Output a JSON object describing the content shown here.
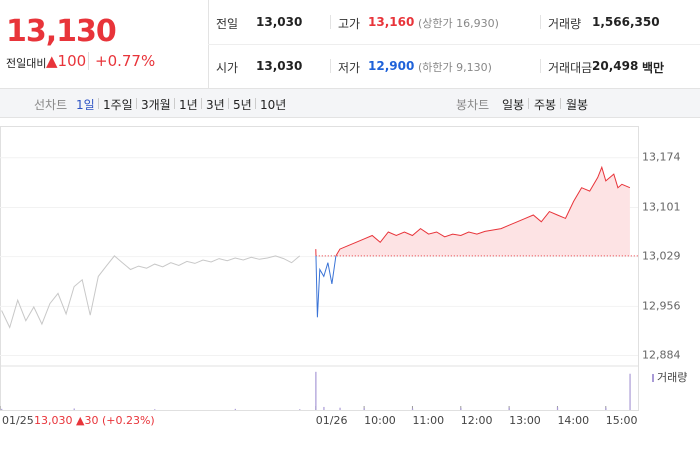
{
  "header": {
    "price": "13,130",
    "change_label": "전일대비",
    "change": "▲100",
    "change_pct": "+0.77%",
    "stats": [
      {
        "label": "전일",
        "value": {
          "value": 13030,
          "label": "13,030"
        }
      },
      {
        "label": "고가",
        "value": "13,160",
        "note": "(상한가 16,930)"
      },
      {
        "label": "거래량",
        "value": "1,566,350"
      },
      {
        "label": "시가",
        "value": "13,030"
      },
      {
        "label": "저가",
        "value": "12,900",
        "note": "(하한가 9,130)"
      },
      {
        "label": "거래대금",
        "value": "20,498",
        "unit": "백만"
      }
    ]
  },
  "nav": {
    "line_label": "선차트",
    "line_periods": [
      "1일",
      "1주일",
      "3개월",
      "1년",
      "3년",
      "5년",
      "10년"
    ],
    "selected": "1일",
    "candle_label": "봉차트",
    "candle_periods": [
      "일봉",
      "주봉",
      "월봉"
    ]
  },
  "chart_data": {
    "type": "line",
    "caption": "13,030 ▲30 (+0.23%)",
    "xlim": [
      -392,
      400
    ],
    "xticks": [
      {
        "value": -392,
        "label": "01/25"
      },
      {
        "value": 0,
        "label": "01/26"
      },
      {
        "value": 60,
        "label": "10:00"
      },
      {
        "value": 120,
        "label": "11:00"
      },
      {
        "value": 180,
        "label": "12:00"
      },
      {
        "value": 240,
        "label": "13:00"
      },
      {
        "value": 300,
        "label": "14:00"
      },
      {
        "value": 360,
        "label": "15:00"
      }
    ],
    "ylim": [
      12870,
      13200
    ],
    "yticks": [
      {
        "value": 12884,
        "label": "12,884"
      },
      {
        "value": 12956,
        "label": "12,956"
      },
      {
        "value": 13029,
        "label": "13,029"
      },
      {
        "value": 13101,
        "label": "13,101"
      },
      {
        "value": 13174,
        "label": "13,174"
      }
    ],
    "grid": true,
    "series": [
      {
        "color": "#c8c8c8",
        "x": [
          -390,
          -380,
          -370,
          -360,
          -350,
          -340,
          -330,
          -320,
          -310,
          -300,
          -290,
          -280,
          -270,
          -260,
          -250,
          -240,
          -230,
          -220,
          -210,
          -200,
          -190,
          -180,
          -170,
          -160,
          -150,
          -140,
          -130,
          -120,
          -110,
          -100,
          -90,
          -80,
          -70,
          -60,
          -50,
          -40,
          -30,
          -20
        ],
        "values": [
          12950,
          12925,
          12965,
          12935,
          12955,
          12930,
          12960,
          12975,
          12945,
          12985,
          12995,
          12943,
          13000,
          13015,
          13030,
          13020,
          13010,
          13015,
          13012,
          13018,
          13014,
          13020,
          13016,
          13022,
          13019,
          13024,
          13021,
          13026,
          13023,
          13027,
          13024,
          13028,
          13025,
          13027,
          13030,
          13026,
          13020,
          13030
        ]
      },
      {
        "color": "#e8343a",
        "below_color": "#3a73d6",
        "fill": "#fde3e4",
        "x": [
          0,
          2,
          5,
          10,
          15,
          20,
          25,
          30,
          40,
          50,
          60,
          70,
          80,
          90,
          100,
          110,
          120,
          130,
          140,
          150,
          160,
          170,
          180,
          190,
          200,
          210,
          220,
          230,
          240,
          250,
          260,
          270,
          280,
          290,
          300,
          310,
          320,
          330,
          340,
          350,
          355,
          360,
          370,
          375,
          380,
          390
        ],
        "values": [
          13040,
          12940,
          13010,
          13000,
          13020,
          12989,
          13030,
          13040,
          13045,
          13050,
          13055,
          13060,
          13050,
          13065,
          13060,
          13065,
          13060,
          13070,
          13062,
          13065,
          13058,
          13062,
          13060,
          13065,
          13062,
          13066,
          13068,
          13070,
          13075,
          13080,
          13085,
          13090,
          13080,
          13095,
          13090,
          13085,
          13110,
          13130,
          13125,
          13145,
          13160,
          13140,
          13150,
          13130,
          13135,
          13130
        ]
      }
    ],
    "volume": {
      "name": "거래량",
      "color": "#a99bd6",
      "ylim": [
        0,
        110
      ],
      "x": [
        -390,
        -300,
        -200,
        -100,
        -20,
        0,
        10,
        30,
        60,
        120,
        180,
        240,
        300,
        360,
        390
      ],
      "values": [
        3,
        4,
        2,
        3,
        2,
        100,
        8,
        6,
        5,
        4,
        5,
        6,
        7,
        6,
        95
      ]
    }
  }
}
